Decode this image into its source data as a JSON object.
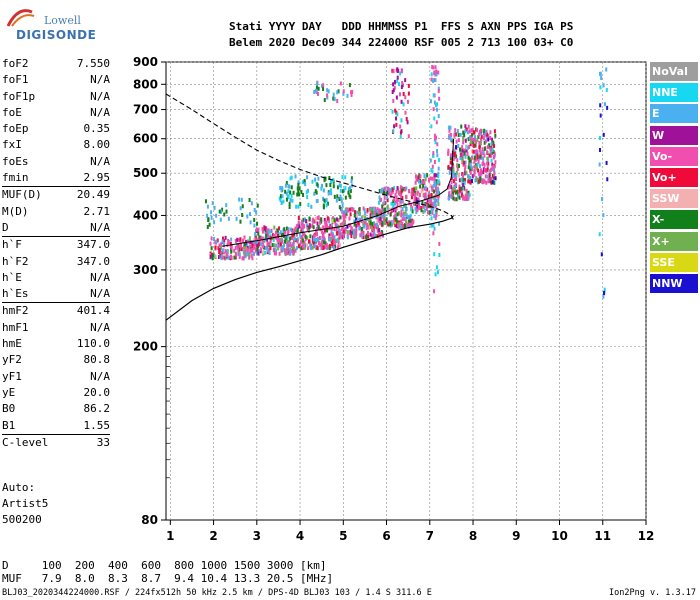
{
  "logo": {
    "line1": "Lowell",
    "line2": "DIGISONDE"
  },
  "header": {
    "line1": "Stati YYYY DAY   DDD HHMMSS P1  FFS S AXN PPS IGA PS",
    "line2": "Belem 2020 Dec09 344 224000 RSF 005 2 713 100 03+ C0"
  },
  "params": [
    {
      "k": "foF2",
      "v": "7.550"
    },
    {
      "k": "foF1",
      "v": "N/A"
    },
    {
      "k": "foF1p",
      "v": "N/A"
    },
    {
      "k": "foE",
      "v": "N/A"
    },
    {
      "k": "foEp",
      "v": "0.35"
    },
    {
      "k": "fxI",
      "v": "8.00"
    },
    {
      "k": "foEs",
      "v": "N/A"
    },
    {
      "k": "fmin",
      "v": "2.95"
    },
    {
      "k": "MUF(D)",
      "v": "20.49"
    },
    {
      "k": "M(D)",
      "v": "2.71"
    },
    {
      "k": "D",
      "v": "N/A"
    },
    {
      "k": "h`F",
      "v": "347.0"
    },
    {
      "k": "h`F2",
      "v": "347.0"
    },
    {
      "k": "h`E",
      "v": "N/A"
    },
    {
      "k": "h`Es",
      "v": "N/A"
    },
    {
      "k": "hmF2",
      "v": "401.4"
    },
    {
      "k": "hmF1",
      "v": "N/A"
    },
    {
      "k": "hmE",
      "v": "110.0"
    },
    {
      "k": "yF2",
      "v": "80.8"
    },
    {
      "k": "yF1",
      "v": "N/A"
    },
    {
      "k": "yE",
      "v": "20.0"
    },
    {
      "k": "B0",
      "v": "86.2"
    },
    {
      "k": "B1",
      "v": "1.55"
    },
    {
      "k": "C-level",
      "v": "33"
    }
  ],
  "auto": {
    "line1": "Auto:",
    "line2": "Artist5",
    "line3": "500200"
  },
  "legend": [
    {
      "label": "NoVal",
      "color": "#9e9e9e"
    },
    {
      "label": "NNE",
      "color": "#17d8f0"
    },
    {
      "label": "E",
      "color": "#4ab0f0"
    },
    {
      "label": "W",
      "color": "#a0119a"
    },
    {
      "label": "Vo-",
      "color": "#f04fb0"
    },
    {
      "label": "Vo+",
      "color": "#f00a3a"
    },
    {
      "label": "SSW",
      "color": "#f4b0b0"
    },
    {
      "label": "X-",
      "color": "#12801a"
    },
    {
      "label": "X+",
      "color": "#70b050"
    },
    {
      "label": "SSE",
      "color": "#d8d814"
    },
    {
      "label": "NNW",
      "color": "#1a10d0"
    }
  ],
  "bottom": {
    "line1": "D     100  200  400  600  800 1000 1500 3000 [km]",
    "line2": "MUF   7.9  8.0  8.3  8.7  9.4 10.4 13.3 20.5 [MHz]"
  },
  "footer": {
    "left": "BLJ03_2020344224000.RSF / 224fx512h 50 kHz 2.5 km / DPS-4D BLJ03 103 / 1.4 S 311.6 E",
    "right": "Ion2Png v. 1.3.17"
  },
  "chart_data": {
    "type": "scatter",
    "title": "",
    "xlabel": "",
    "ylabel": "",
    "xlim": [
      0.9,
      12
    ],
    "ylim": [
      80,
      900
    ],
    "y_scale": "log",
    "xticks": [
      1,
      2,
      3,
      4,
      5,
      6,
      7,
      8,
      9,
      10,
      11,
      12
    ],
    "yticks": [
      80,
      200,
      300,
      400,
      500,
      600,
      700,
      800,
      900
    ],
    "grid": true,
    "main_trace_x": [
      2.0,
      2.5,
      3.0,
      3.5,
      4.0,
      4.5,
      5.0,
      5.5,
      6.0,
      6.5,
      7.0,
      7.3,
      7.5,
      7.7,
      8.0,
      8.2,
      8.4,
      8.6
    ],
    "main_trace_y": [
      330,
      338,
      345,
      352,
      362,
      372,
      385,
      398,
      410,
      425,
      440,
      455,
      470,
      490,
      510,
      540,
      570,
      600
    ],
    "model_profile": {
      "x": [
        0.9,
        1.5,
        2.0,
        2.5,
        3.0,
        3.5,
        4.0,
        4.5,
        5.0,
        5.5,
        6.0,
        6.5,
        7.0,
        7.3,
        7.5,
        7.55
      ],
      "y": [
        230,
        255,
        272,
        285,
        296,
        305,
        315,
        325,
        338,
        350,
        363,
        375,
        382,
        388,
        394,
        400
      ]
    },
    "dashed_profile": {
      "x": [
        0.9,
        1.5,
        2.0,
        2.5,
        3.0,
        3.5,
        4.0,
        4.5,
        5.0,
        5.5,
        6.0,
        6.5,
        7.0,
        7.3,
        7.5,
        7.55
      ],
      "y": [
        760,
        700,
        650,
        605,
        565,
        535,
        510,
        490,
        475,
        460,
        445,
        432,
        420,
        410,
        400,
        390
      ]
    },
    "f2_curve": {
      "x": [
        2.2,
        3.0,
        4.0,
        5.0,
        5.8,
        6.3,
        6.8,
        7.2,
        7.4,
        7.5,
        7.55
      ],
      "y": [
        340,
        350,
        365,
        378,
        400,
        420,
        432,
        445,
        460,
        490,
        600
      ]
    }
  }
}
